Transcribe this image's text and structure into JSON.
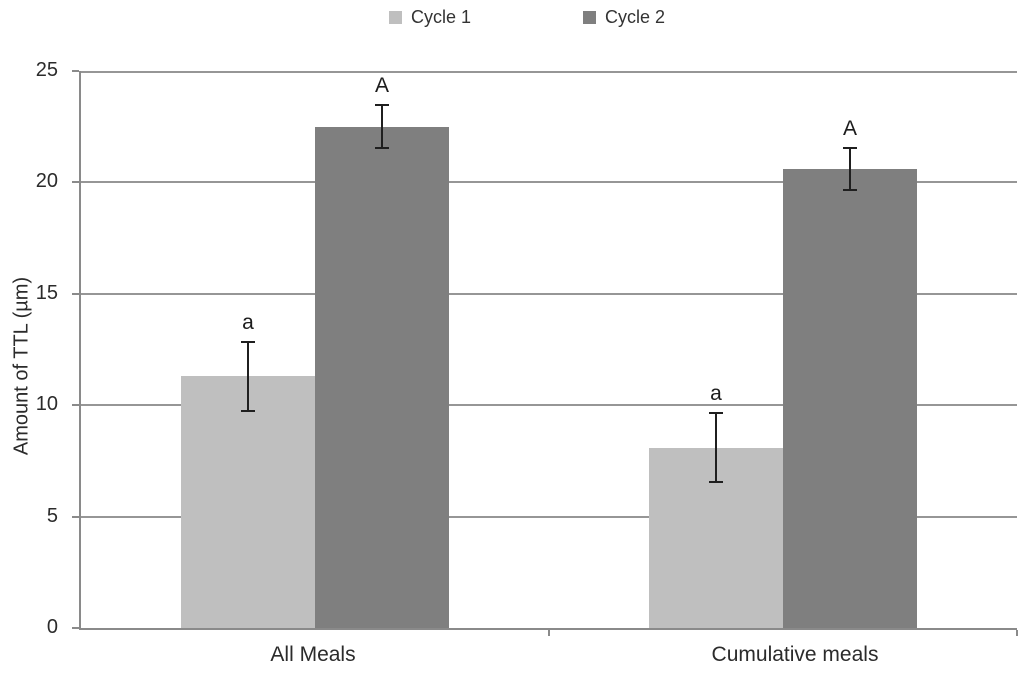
{
  "chart_data": {
    "type": "bar",
    "title": "",
    "xlabel": "",
    "ylabel": "Amount of TTL (µm)",
    "ylim": [
      0,
      25
    ],
    "yticks": [
      0,
      5,
      10,
      15,
      20,
      25
    ],
    "grid": true,
    "legend_position": "top",
    "categories": [
      "All Meals",
      "Cumulative meals"
    ],
    "series": [
      {
        "name": "Cycle 1",
        "color": "#bfbfbf",
        "values": [
          11.3,
          8.1
        ],
        "errors": [
          1.6,
          1.6
        ],
        "point_labels": [
          "a",
          "a"
        ]
      },
      {
        "name": "Cycle 2",
        "color": "#7f7f7f",
        "values": [
          22.5,
          20.6
        ],
        "errors": [
          1.0,
          1.0
        ],
        "point_labels": [
          "A",
          "A"
        ]
      }
    ],
    "colors": {
      "grid": "#969696",
      "axis": "#8a8a8a",
      "error_bar": "#1f1f1f",
      "text": "#2b2b2b"
    }
  }
}
